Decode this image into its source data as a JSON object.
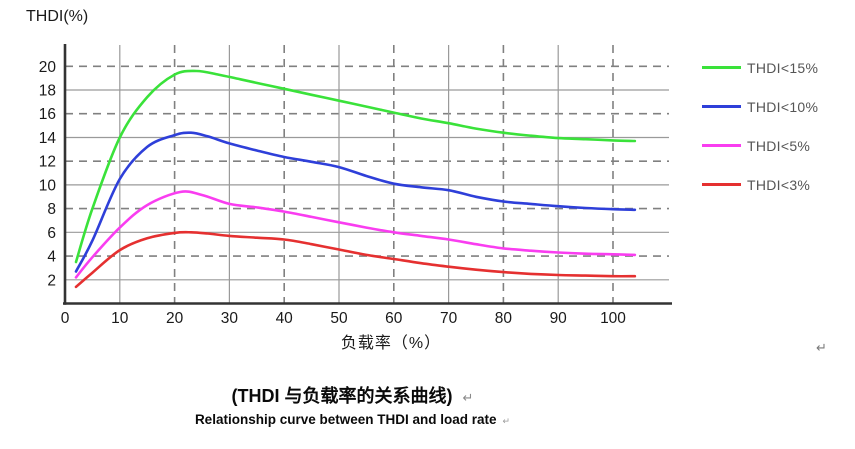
{
  "chart_data": {
    "type": "line",
    "ylabel": "THDI(%)",
    "xlabel": "负载率（%）",
    "xlim": [
      0,
      110
    ],
    "ylim": [
      0,
      21.8
    ],
    "x_ticks": [
      0,
      10,
      20,
      30,
      40,
      50,
      60,
      70,
      80,
      90,
      100
    ],
    "y_ticks": [
      2,
      4,
      6,
      8,
      10,
      12,
      14,
      16,
      18,
      20
    ],
    "grid": "horizontal: solid at 2,6,10,14,18 and dashed at 4,8,12,16,20; vertical: solid at 10,30,50,70,90 and dashed at 20,40,60,80,100",
    "legend_position": "right",
    "axis_color": "#333333",
    "grid_solid_color": "#9a9a9a",
    "grid_dash_color": "#808080",
    "tick_label_color": "#1a1a1a",
    "series": [
      {
        "name": "THDI<15%",
        "color": "#3ae23a",
        "points": [
          [
            2,
            3.5
          ],
          [
            5,
            8.0
          ],
          [
            10,
            14.0
          ],
          [
            15,
            17.4
          ],
          [
            20,
            19.3
          ],
          [
            24,
            19.6
          ],
          [
            28,
            19.3
          ],
          [
            32,
            18.9
          ],
          [
            36,
            18.5
          ],
          [
            40,
            18.1
          ],
          [
            45,
            17.6
          ],
          [
            50,
            17.1
          ],
          [
            55,
            16.6
          ],
          [
            60,
            16.1
          ],
          [
            65,
            15.6
          ],
          [
            70,
            15.2
          ],
          [
            75,
            14.75
          ],
          [
            80,
            14.4
          ],
          [
            85,
            14.15
          ],
          [
            90,
            13.95
          ],
          [
            95,
            13.85
          ],
          [
            100,
            13.75
          ],
          [
            104,
            13.7
          ]
        ]
      },
      {
        "name": "THDI<10%",
        "color": "#2e3fd9",
        "points": [
          [
            2,
            2.7
          ],
          [
            5,
            5.3
          ],
          [
            10,
            10.5
          ],
          [
            15,
            13.2
          ],
          [
            20,
            14.2
          ],
          [
            23,
            14.4
          ],
          [
            26,
            14.1
          ],
          [
            30,
            13.5
          ],
          [
            35,
            12.9
          ],
          [
            40,
            12.35
          ],
          [
            45,
            11.95
          ],
          [
            50,
            11.5
          ],
          [
            55,
            10.75
          ],
          [
            60,
            10.1
          ],
          [
            65,
            9.8
          ],
          [
            70,
            9.55
          ],
          [
            75,
            9.0
          ],
          [
            80,
            8.6
          ],
          [
            85,
            8.4
          ],
          [
            90,
            8.2
          ],
          [
            95,
            8.05
          ],
          [
            100,
            7.95
          ],
          [
            104,
            7.9
          ]
        ]
      },
      {
        "name": "THDI<5%",
        "color": "#f93df0",
        "points": [
          [
            2,
            2.2
          ],
          [
            5,
            3.9
          ],
          [
            10,
            6.4
          ],
          [
            15,
            8.3
          ],
          [
            21,
            9.4
          ],
          [
            25,
            9.15
          ],
          [
            30,
            8.4
          ],
          [
            35,
            8.1
          ],
          [
            40,
            7.75
          ],
          [
            45,
            7.3
          ],
          [
            50,
            6.85
          ],
          [
            55,
            6.4
          ],
          [
            60,
            6.0
          ],
          [
            65,
            5.7
          ],
          [
            70,
            5.4
          ],
          [
            75,
            5.0
          ],
          [
            80,
            4.65
          ],
          [
            85,
            4.45
          ],
          [
            90,
            4.3
          ],
          [
            95,
            4.2
          ],
          [
            100,
            4.15
          ],
          [
            104,
            4.1
          ]
        ]
      },
      {
        "name": "THDI<3%",
        "color": "#e53030",
        "points": [
          [
            2,
            1.4
          ],
          [
            5,
            2.6
          ],
          [
            10,
            4.5
          ],
          [
            15,
            5.5
          ],
          [
            20,
            5.95
          ],
          [
            23,
            6.0
          ],
          [
            26,
            5.9
          ],
          [
            30,
            5.7
          ],
          [
            35,
            5.55
          ],
          [
            40,
            5.4
          ],
          [
            45,
            5.0
          ],
          [
            50,
            4.55
          ],
          [
            55,
            4.1
          ],
          [
            60,
            3.75
          ],
          [
            65,
            3.4
          ],
          [
            70,
            3.1
          ],
          [
            75,
            2.85
          ],
          [
            80,
            2.65
          ],
          [
            85,
            2.5
          ],
          [
            90,
            2.4
          ],
          [
            95,
            2.35
          ],
          [
            100,
            2.3
          ],
          [
            104,
            2.3
          ]
        ]
      }
    ]
  },
  "captions": {
    "zh": "(THDI 与负载率的关系曲线)",
    "en": "Relationship curve between THDI and load rate"
  },
  "marks": {
    "return_mark": "↵"
  }
}
